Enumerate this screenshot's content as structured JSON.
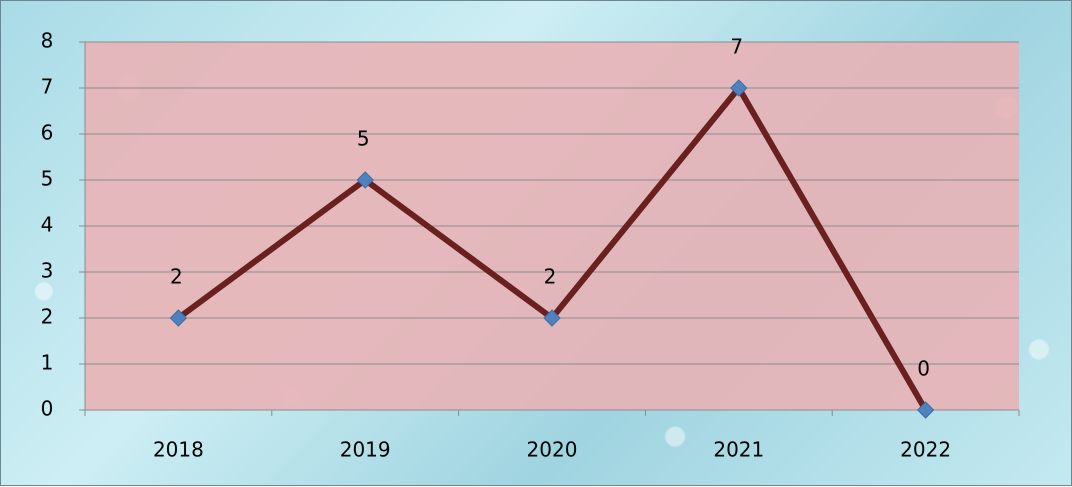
{
  "chart_data": {
    "type": "line",
    "title": "",
    "xlabel": "",
    "ylabel": "",
    "categories": [
      "2018",
      "2019",
      "2020",
      "2021",
      "2022"
    ],
    "series": [
      {
        "values": [
          2,
          5,
          2,
          7,
          0
        ],
        "color": "#6b2020",
        "marker": "diamond",
        "marker_color": "#4f81bd"
      }
    ],
    "data_labels": [
      "2",
      "5",
      "2",
      "7",
      "0"
    ],
    "ylim": [
      0,
      8
    ],
    "yticks": [
      "0",
      "1",
      "2",
      "3",
      "4",
      "5",
      "6",
      "7",
      "8"
    ],
    "grid": true,
    "legend": "none",
    "plot_area_color": "#e8b2b6",
    "background_color": "#b4e2ec"
  }
}
